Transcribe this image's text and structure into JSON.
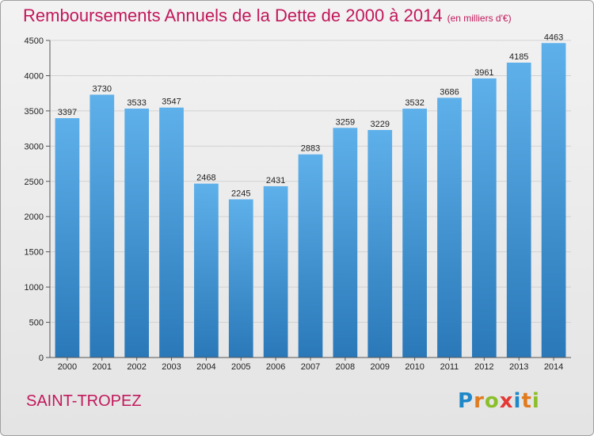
{
  "title": "Remboursements Annuels de la Dette de 2000 à 2014",
  "unit_note": "(en milliers d'€)",
  "commune": "SAINT-TROPEZ",
  "logo": {
    "text": "Proxiti",
    "letters": [
      {
        "ch": "P",
        "color": "#1e88c8"
      },
      {
        "ch": "r",
        "color": "#e07b1e"
      },
      {
        "ch": "o",
        "color": "#8bbf2a"
      },
      {
        "ch": "x",
        "color": "#e53935"
      },
      {
        "ch": "i",
        "color": "#1e88c8"
      },
      {
        "ch": "t",
        "color": "#e07b1e"
      },
      {
        "ch": "i",
        "color": "#8bbf2a"
      }
    ]
  },
  "colors": {
    "bar_top": "#5eb0ea",
    "bar_bottom": "#2a78b8",
    "title": "#c2185b"
  },
  "chart_data": {
    "type": "bar",
    "categories": [
      "2000",
      "2001",
      "2002",
      "2003",
      "2004",
      "2005",
      "2006",
      "2007",
      "2008",
      "2009",
      "2010",
      "2011",
      "2012",
      "2013",
      "2014"
    ],
    "values": [
      3397,
      3730,
      3533,
      3547,
      2468,
      2245,
      2431,
      2883,
      3259,
      3229,
      3532,
      3686,
      3961,
      4185,
      4463
    ],
    "title": "Remboursements Annuels de la Dette de 2000 à 2014",
    "xlabel": "",
    "ylabel": "",
    "ylim": [
      0,
      4500
    ],
    "yticks": [
      0,
      500,
      1000,
      1500,
      2000,
      2500,
      3000,
      3500,
      4000,
      4500
    ],
    "grid": true,
    "legend": "none"
  }
}
